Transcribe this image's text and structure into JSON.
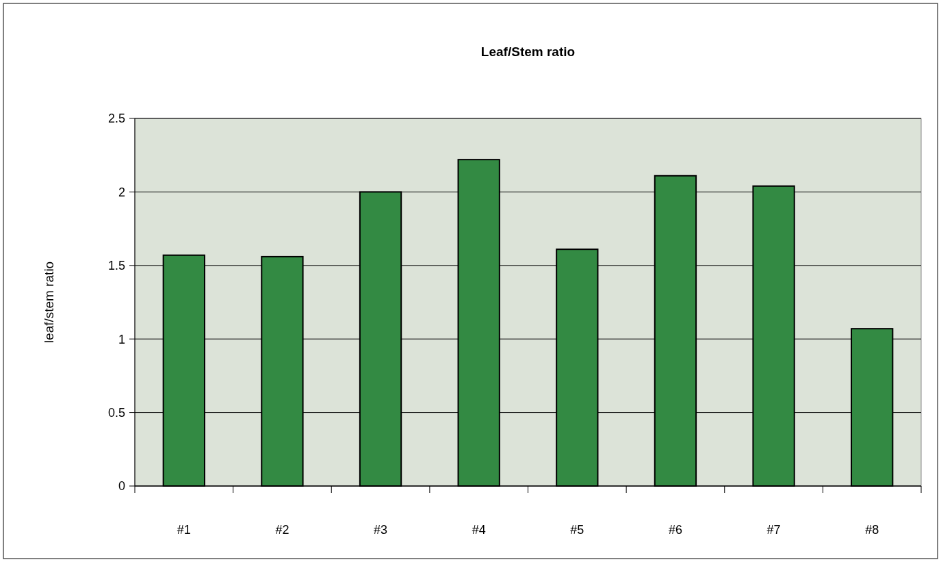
{
  "chart_data": {
    "type": "bar",
    "title": "Leaf/Stem ratio",
    "ylabel": "leaf/stem ratio",
    "categories": [
      "#1",
      "#2",
      "#3",
      "#4",
      "#5",
      "#6",
      "#7",
      "#8"
    ],
    "values": [
      1.57,
      1.56,
      2.0,
      2.22,
      1.61,
      2.11,
      2.04,
      1.07
    ],
    "color": "#338a43",
    "ylim": [
      0,
      2.5
    ],
    "yticks": [
      0,
      0.5,
      1,
      1.5,
      2,
      2.5
    ],
    "grid": "y"
  }
}
